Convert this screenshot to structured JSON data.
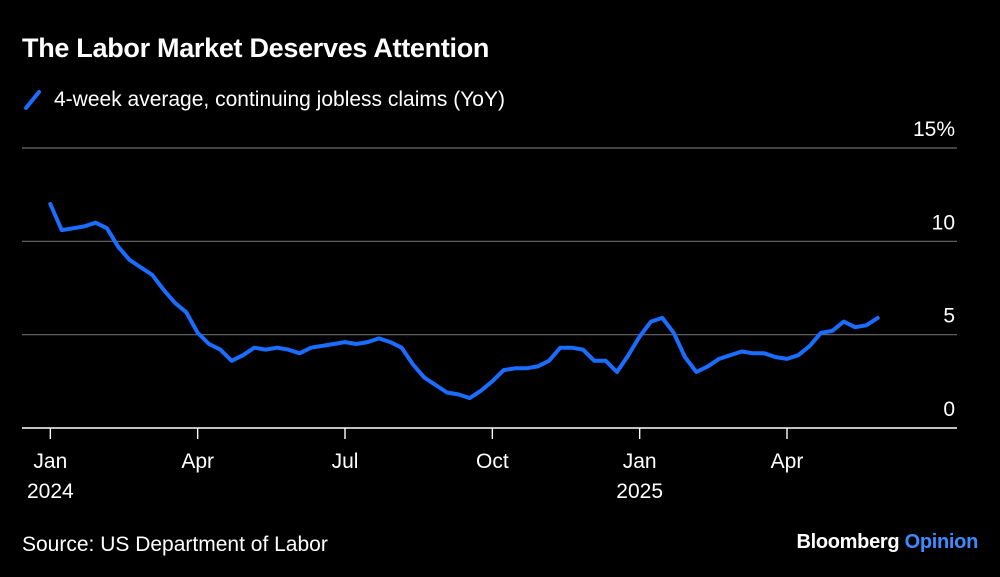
{
  "chart_data": {
    "type": "line",
    "title": "The Labor Market Deserves Attention",
    "xlabel": "",
    "ylabel": "",
    "y_tick_labels": [
      "0",
      "5",
      "10",
      "15%"
    ],
    "y_ticks": [
      0,
      5,
      10,
      15
    ],
    "ylim": [
      0,
      15
    ],
    "x_tick_labels": [
      {
        "month": "Jan",
        "year": "2024",
        "week": 0
      },
      {
        "month": "Apr",
        "year": "",
        "week": 13
      },
      {
        "month": "Jul",
        "year": "",
        "week": 26
      },
      {
        "month": "Oct",
        "year": "",
        "week": 39
      },
      {
        "month": "Jan",
        "year": "2025",
        "week": 52
      },
      {
        "month": "Apr",
        "year": "",
        "week": 65
      }
    ],
    "xlim": [
      -2.5,
      80
    ],
    "series": [
      {
        "name": "4-week average, continuing jobless claims (YoY)",
        "color": "#1a6dff",
        "x": [
          0,
          1,
          2,
          3,
          4,
          5,
          6,
          7,
          8,
          9,
          10,
          11,
          12,
          13,
          14,
          15,
          16,
          17,
          18,
          19,
          20,
          21,
          22,
          23,
          24,
          25,
          26,
          27,
          28,
          29,
          30,
          31,
          32,
          33,
          34,
          35,
          36,
          37,
          38,
          39,
          40,
          41,
          42,
          43,
          44,
          45,
          46,
          47,
          48,
          49,
          50,
          51,
          52,
          53,
          54,
          55,
          56,
          57,
          58,
          59,
          60,
          61,
          62,
          63,
          64,
          65,
          66,
          67,
          68,
          69,
          70,
          71,
          72,
          73
        ],
        "values": [
          12.0,
          10.6,
          10.7,
          10.8,
          11.0,
          10.7,
          9.7,
          9.0,
          8.6,
          8.2,
          7.4,
          6.7,
          6.2,
          5.1,
          4.5,
          4.2,
          3.6,
          3.9,
          4.3,
          4.2,
          4.3,
          4.2,
          4.0,
          4.3,
          4.4,
          4.5,
          4.6,
          4.5,
          4.6,
          4.8,
          4.6,
          4.3,
          3.4,
          2.7,
          2.3,
          1.9,
          1.8,
          1.6,
          2.0,
          2.5,
          3.1,
          3.2,
          3.2,
          3.3,
          3.6,
          4.3,
          4.3,
          4.2,
          3.6,
          3.6,
          3.0,
          3.9,
          4.9,
          5.7,
          5.9,
          5.1,
          3.8,
          3.0,
          3.3,
          3.7,
          3.9,
          4.1,
          4.0,
          4.0,
          3.8,
          3.7,
          3.9,
          4.4,
          5.1,
          5.2,
          5.7,
          5.4,
          5.5,
          5.9
        ]
      }
    ],
    "grid": true,
    "legend_position": "top-left"
  },
  "legend_label": "4-week average, continuing jobless claims (YoY)",
  "source": "Source: US Department of Labor",
  "brand": {
    "main": "Bloomberg",
    "sub": "Opinion"
  }
}
